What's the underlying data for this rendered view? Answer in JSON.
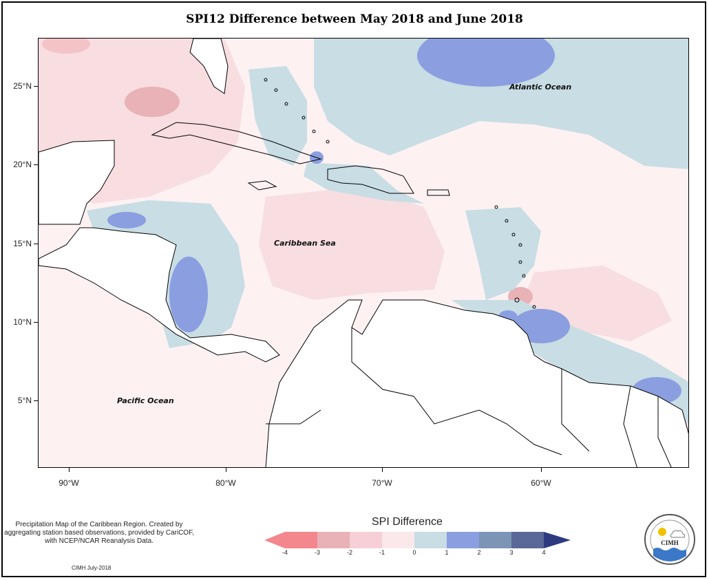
{
  "title": "SPI12 Difference between May 2018 and June 2018",
  "axes": {
    "lat_ticks": [
      "25°N",
      "20°N",
      "15°N",
      "10°N",
      "5°N"
    ],
    "lon_ticks": [
      "90°W",
      "80°W",
      "70°W",
      "60°W"
    ]
  },
  "map_labels": {
    "atlantic": "Atlantic Ocean",
    "caribbean": "Caribbean Sea",
    "pacific": "Pacific Ocean"
  },
  "description": "Precipitation Map of the Caribbean Region. Created by aggregating station based observations, provided by CariCOF, with NCEP/NCAR Reanalysis Data.",
  "credit": "CIMH July-2018",
  "legend": {
    "title": "SPI Difference",
    "labels": [
      "-4",
      "-3",
      "-2",
      "-1",
      "0",
      "1",
      "2",
      "3",
      "4"
    ],
    "colors": [
      "#f4878d",
      "#e8b2b6",
      "#f6d0d6",
      "#fbe8ea",
      "#c8dde4",
      "#8b9ee0",
      "#7c94b6",
      "#5a6898",
      "#2e3a80"
    ]
  },
  "logo": {
    "text": "CIMH"
  },
  "colors": {
    "very_wet": "#8b9ee0",
    "wet": "#c8dde4",
    "neutral_pos": "#fdf1f2",
    "dry": "#f8dde1",
    "drier": "#e8b2b6"
  }
}
